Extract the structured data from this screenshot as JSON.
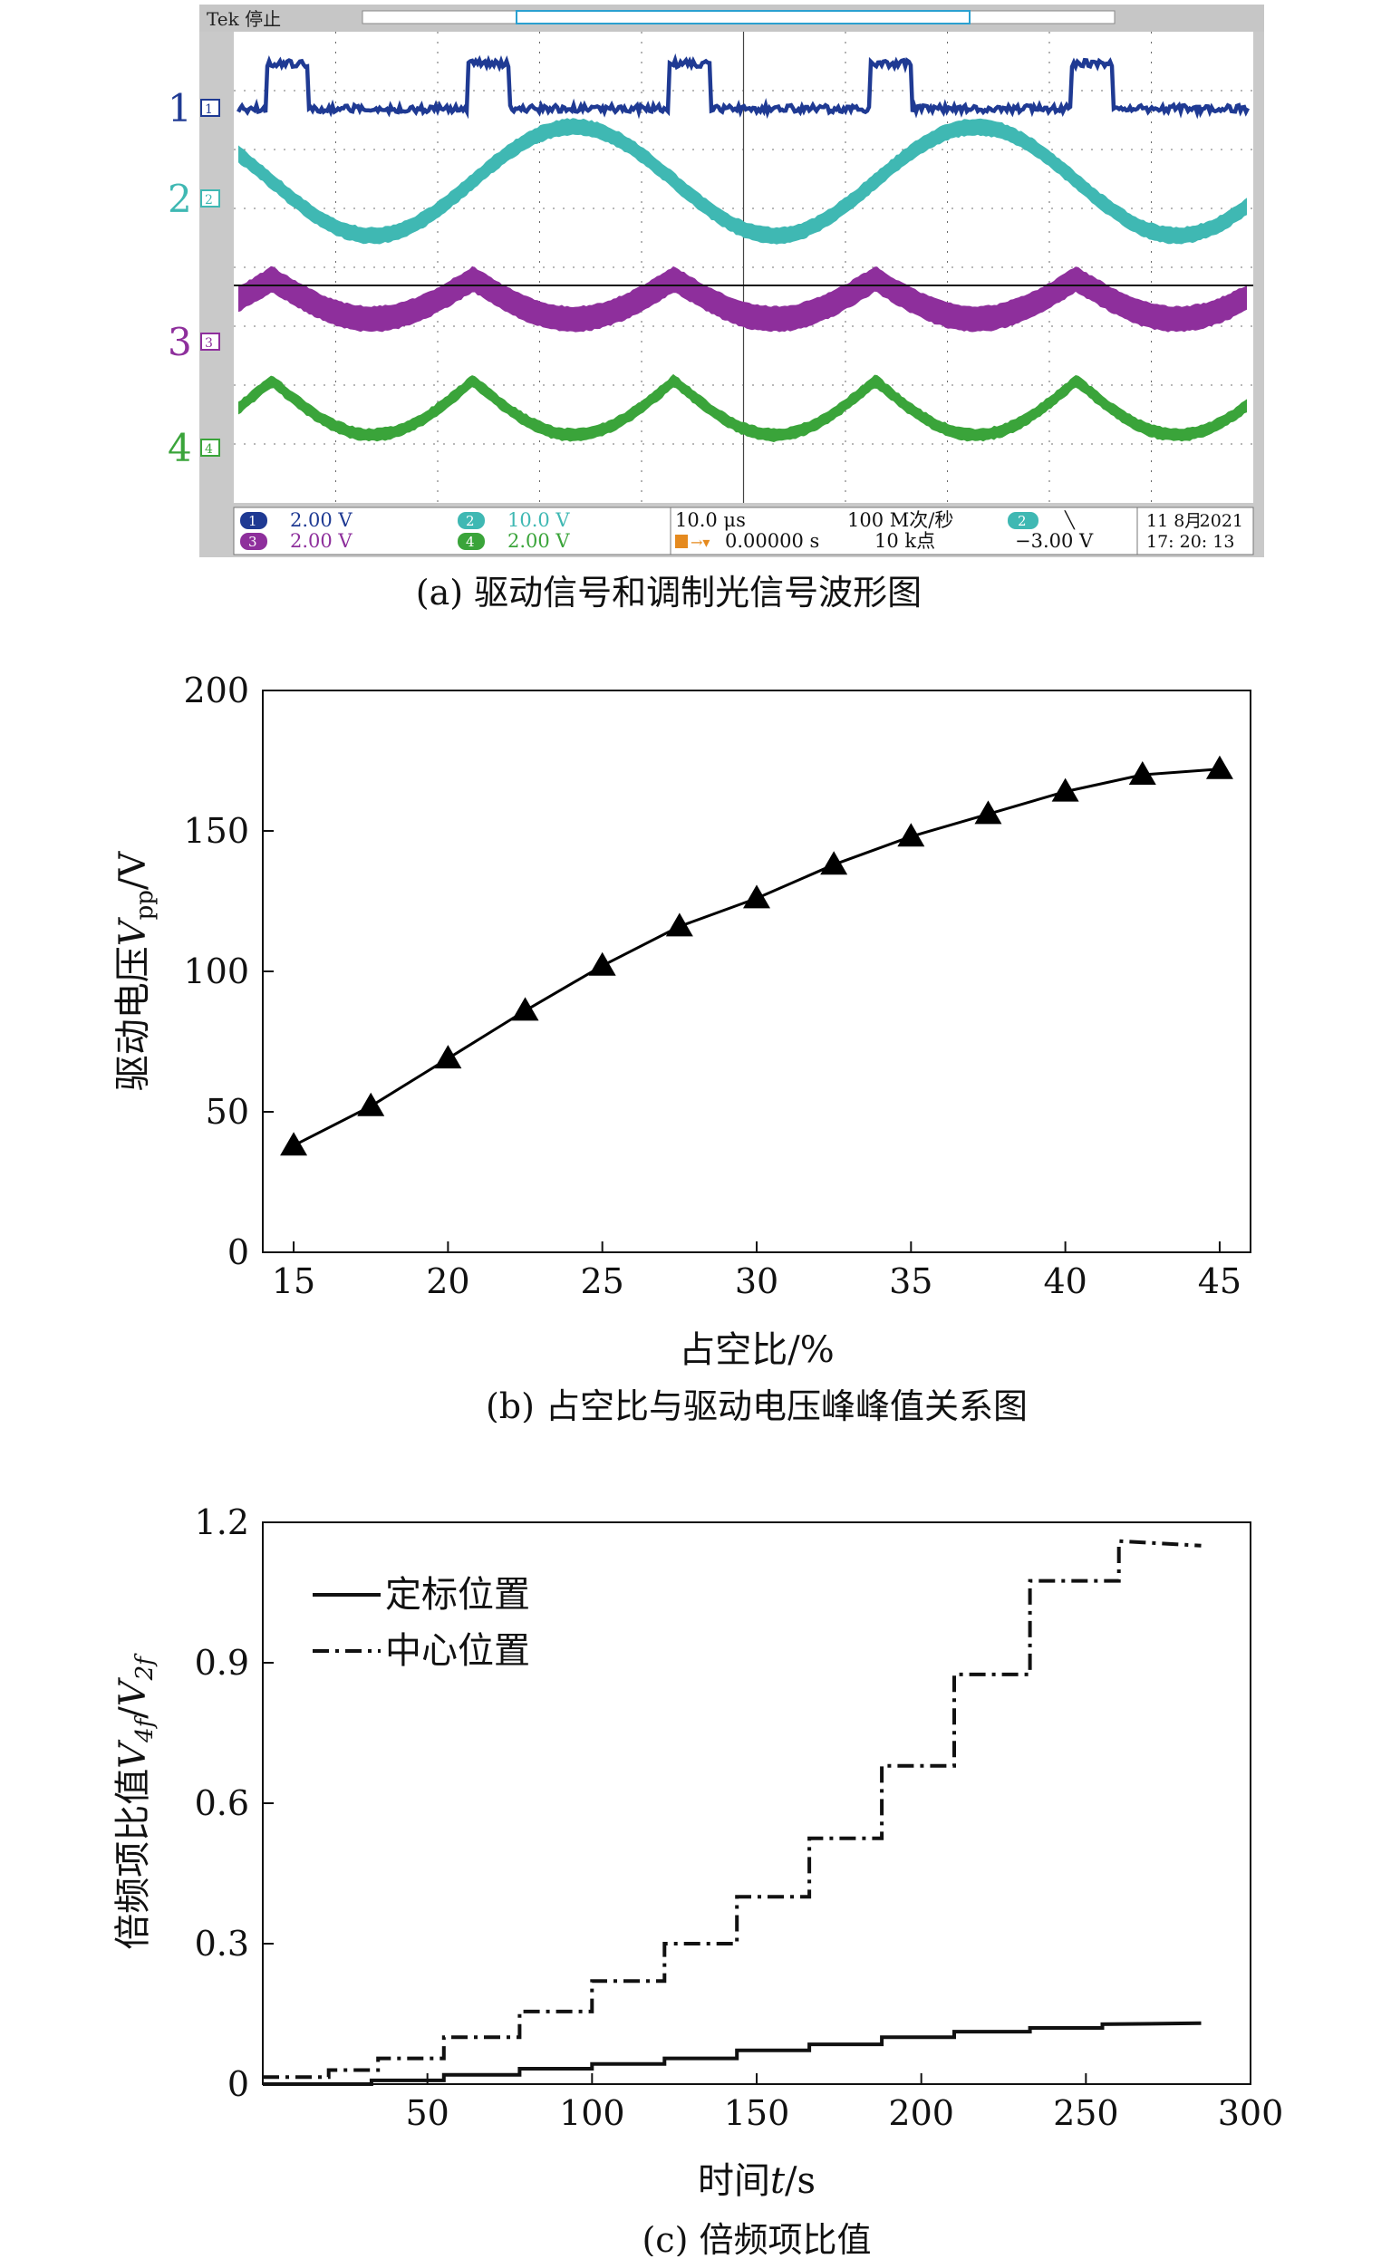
{
  "panel_a": {
    "caption": "(a) 驱动信号和调制光信号波形图",
    "header_label": "Tek 停止",
    "trigger_marker": "T",
    "channels": [
      {
        "id": "1",
        "label": "1",
        "color": "#1f3a93",
        "scale": "2.00 V"
      },
      {
        "id": "2",
        "label": "2",
        "color": "#3fb8b3",
        "scale": "10.0 V"
      },
      {
        "id": "3",
        "label": "3",
        "color": "#8e2f9c",
        "scale": "2.00 V"
      },
      {
        "id": "4",
        "label": "4",
        "color": "#3aa43a",
        "scale": "2.00 V"
      }
    ],
    "timebase": "10.0 μs",
    "trigger_pos": "0.00000 s",
    "sample_rate": "100 M次/秒",
    "record_length": "10 k点",
    "trigger_channel": "2",
    "trigger_slope": "╲",
    "trigger_level": "−3.00 V",
    "date": "11 8月",
    "year": "2021",
    "time": "17: 20: 13"
  },
  "chart_data": [
    {
      "type": "line",
      "caption": "(b) 占空比与驱动电压峰峰值关系图",
      "xlabel": "占空比/%",
      "ylabel_main": "驱动电压",
      "ylabel_var": "V",
      "ylabel_sub": "pp",
      "ylabel_unit": "/V",
      "xlim": [
        14,
        46
      ],
      "ylim": [
        0,
        200
      ],
      "xticks": [
        15,
        20,
        25,
        30,
        35,
        40,
        45
      ],
      "yticks": [
        0,
        50,
        100,
        150,
        200
      ],
      "x": [
        15,
        17.5,
        20,
        22.5,
        25,
        27.5,
        30,
        32.5,
        35,
        37.5,
        40,
        42.5,
        45
      ],
      "y": [
        38,
        52,
        69,
        86,
        102,
        116,
        126,
        138,
        148,
        156,
        164,
        170,
        172
      ],
      "marker": "triangle",
      "color": "#000000"
    },
    {
      "type": "line",
      "caption": "(c) 倍频项比值",
      "xlabel_main": "时间",
      "xlabel_var": "t",
      "xlabel_unit": "/s",
      "ylabel_main": "倍频项比值",
      "ylabel_v1": "V",
      "ylabel_s1": "4f",
      "ylabel_v2": "V",
      "ylabel_s2": "2f",
      "xlim": [
        0,
        300
      ],
      "ylim": [
        0,
        1.2
      ],
      "xticks": [
        50,
        100,
        150,
        200,
        250,
        300
      ],
      "yticks": [
        "0",
        "0.3",
        "0.6",
        "0.9",
        "1.2"
      ],
      "ytick_values": [
        0,
        0.3,
        0.6,
        0.9,
        1.2
      ],
      "legend_position": "top-left",
      "series": [
        {
          "name": "定标位置",
          "style": "solid",
          "x": [
            0,
            33,
            33,
            55,
            55,
            78,
            78,
            100,
            100,
            122,
            122,
            144,
            144,
            166,
            166,
            188,
            188,
            210,
            210,
            233,
            233,
            255,
            255,
            285
          ],
          "y": [
            0.0,
            0.0,
            0.008,
            0.008,
            0.02,
            0.02,
            0.033,
            0.033,
            0.043,
            0.043,
            0.055,
            0.055,
            0.072,
            0.072,
            0.085,
            0.085,
            0.1,
            0.1,
            0.112,
            0.112,
            0.12,
            0.12,
            0.128,
            0.13
          ]
        },
        {
          "name": "中心位置",
          "style": "dashdot",
          "x": [
            0,
            20,
            20,
            35,
            35,
            55,
            55,
            78,
            78,
            100,
            100,
            122,
            122,
            144,
            144,
            166,
            166,
            188,
            188,
            210,
            210,
            233,
            233,
            260,
            260,
            285
          ],
          "y": [
            0.015,
            0.015,
            0.03,
            0.03,
            0.055,
            0.055,
            0.1,
            0.1,
            0.155,
            0.155,
            0.22,
            0.22,
            0.3,
            0.3,
            0.4,
            0.4,
            0.525,
            0.525,
            0.68,
            0.68,
            0.875,
            0.875,
            1.075,
            1.075,
            1.16,
            1.15
          ]
        }
      ]
    }
  ]
}
